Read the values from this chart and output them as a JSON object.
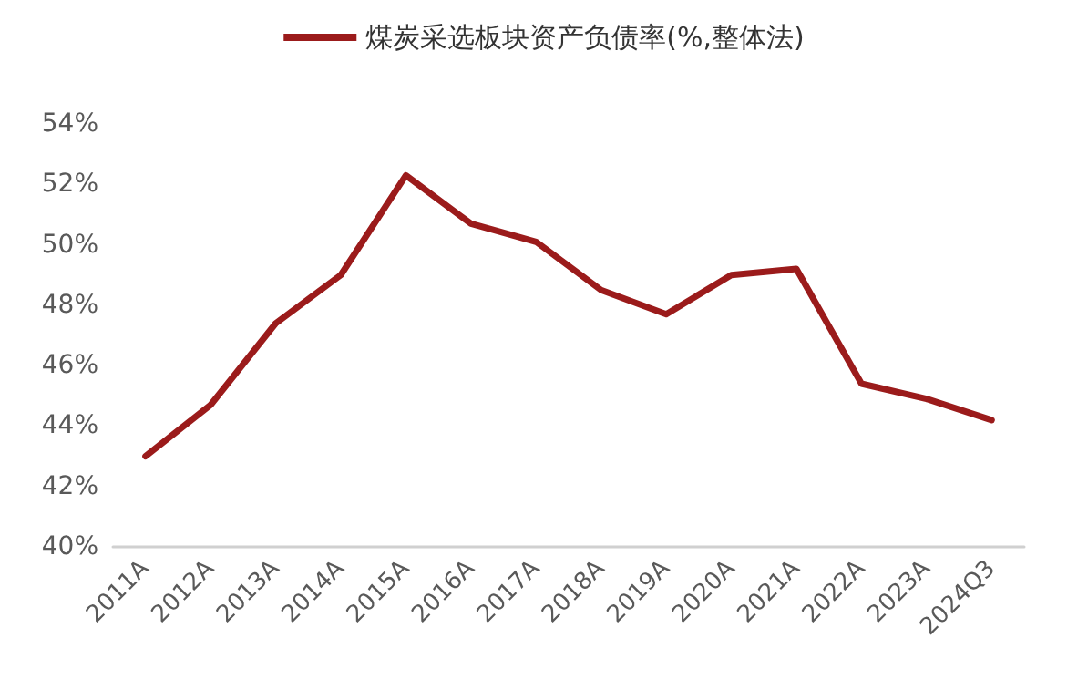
{
  "chart_data": {
    "type": "line",
    "categories": [
      "2011A",
      "2012A",
      "2013A",
      "2014A",
      "2015A",
      "2016A",
      "2017A",
      "2018A",
      "2019A",
      "2020A",
      "2021A",
      "2022A",
      "2023A",
      "2024Q3"
    ],
    "series": [
      {
        "name": "煤炭采选板块资产负债率(%,整体法)",
        "color": "#9b1b1b",
        "values": [
          43.0,
          44.7,
          47.4,
          49.0,
          52.3,
          50.7,
          50.1,
          48.5,
          47.7,
          49.0,
          49.2,
          45.4,
          44.9,
          44.2
        ]
      }
    ],
    "ylim": [
      40,
      54
    ],
    "yticks": [
      {
        "value": 40,
        "label": "40%"
      },
      {
        "value": 42,
        "label": "42%"
      },
      {
        "value": 44,
        "label": "44%"
      },
      {
        "value": 46,
        "label": "46%"
      },
      {
        "value": 48,
        "label": "48%"
      },
      {
        "value": 50,
        "label": "50%"
      },
      {
        "value": 52,
        "label": "52%"
      },
      {
        "value": 54,
        "label": "54%"
      }
    ],
    "grid": false,
    "legend": "top",
    "marker": "none",
    "line_style": "solid"
  }
}
